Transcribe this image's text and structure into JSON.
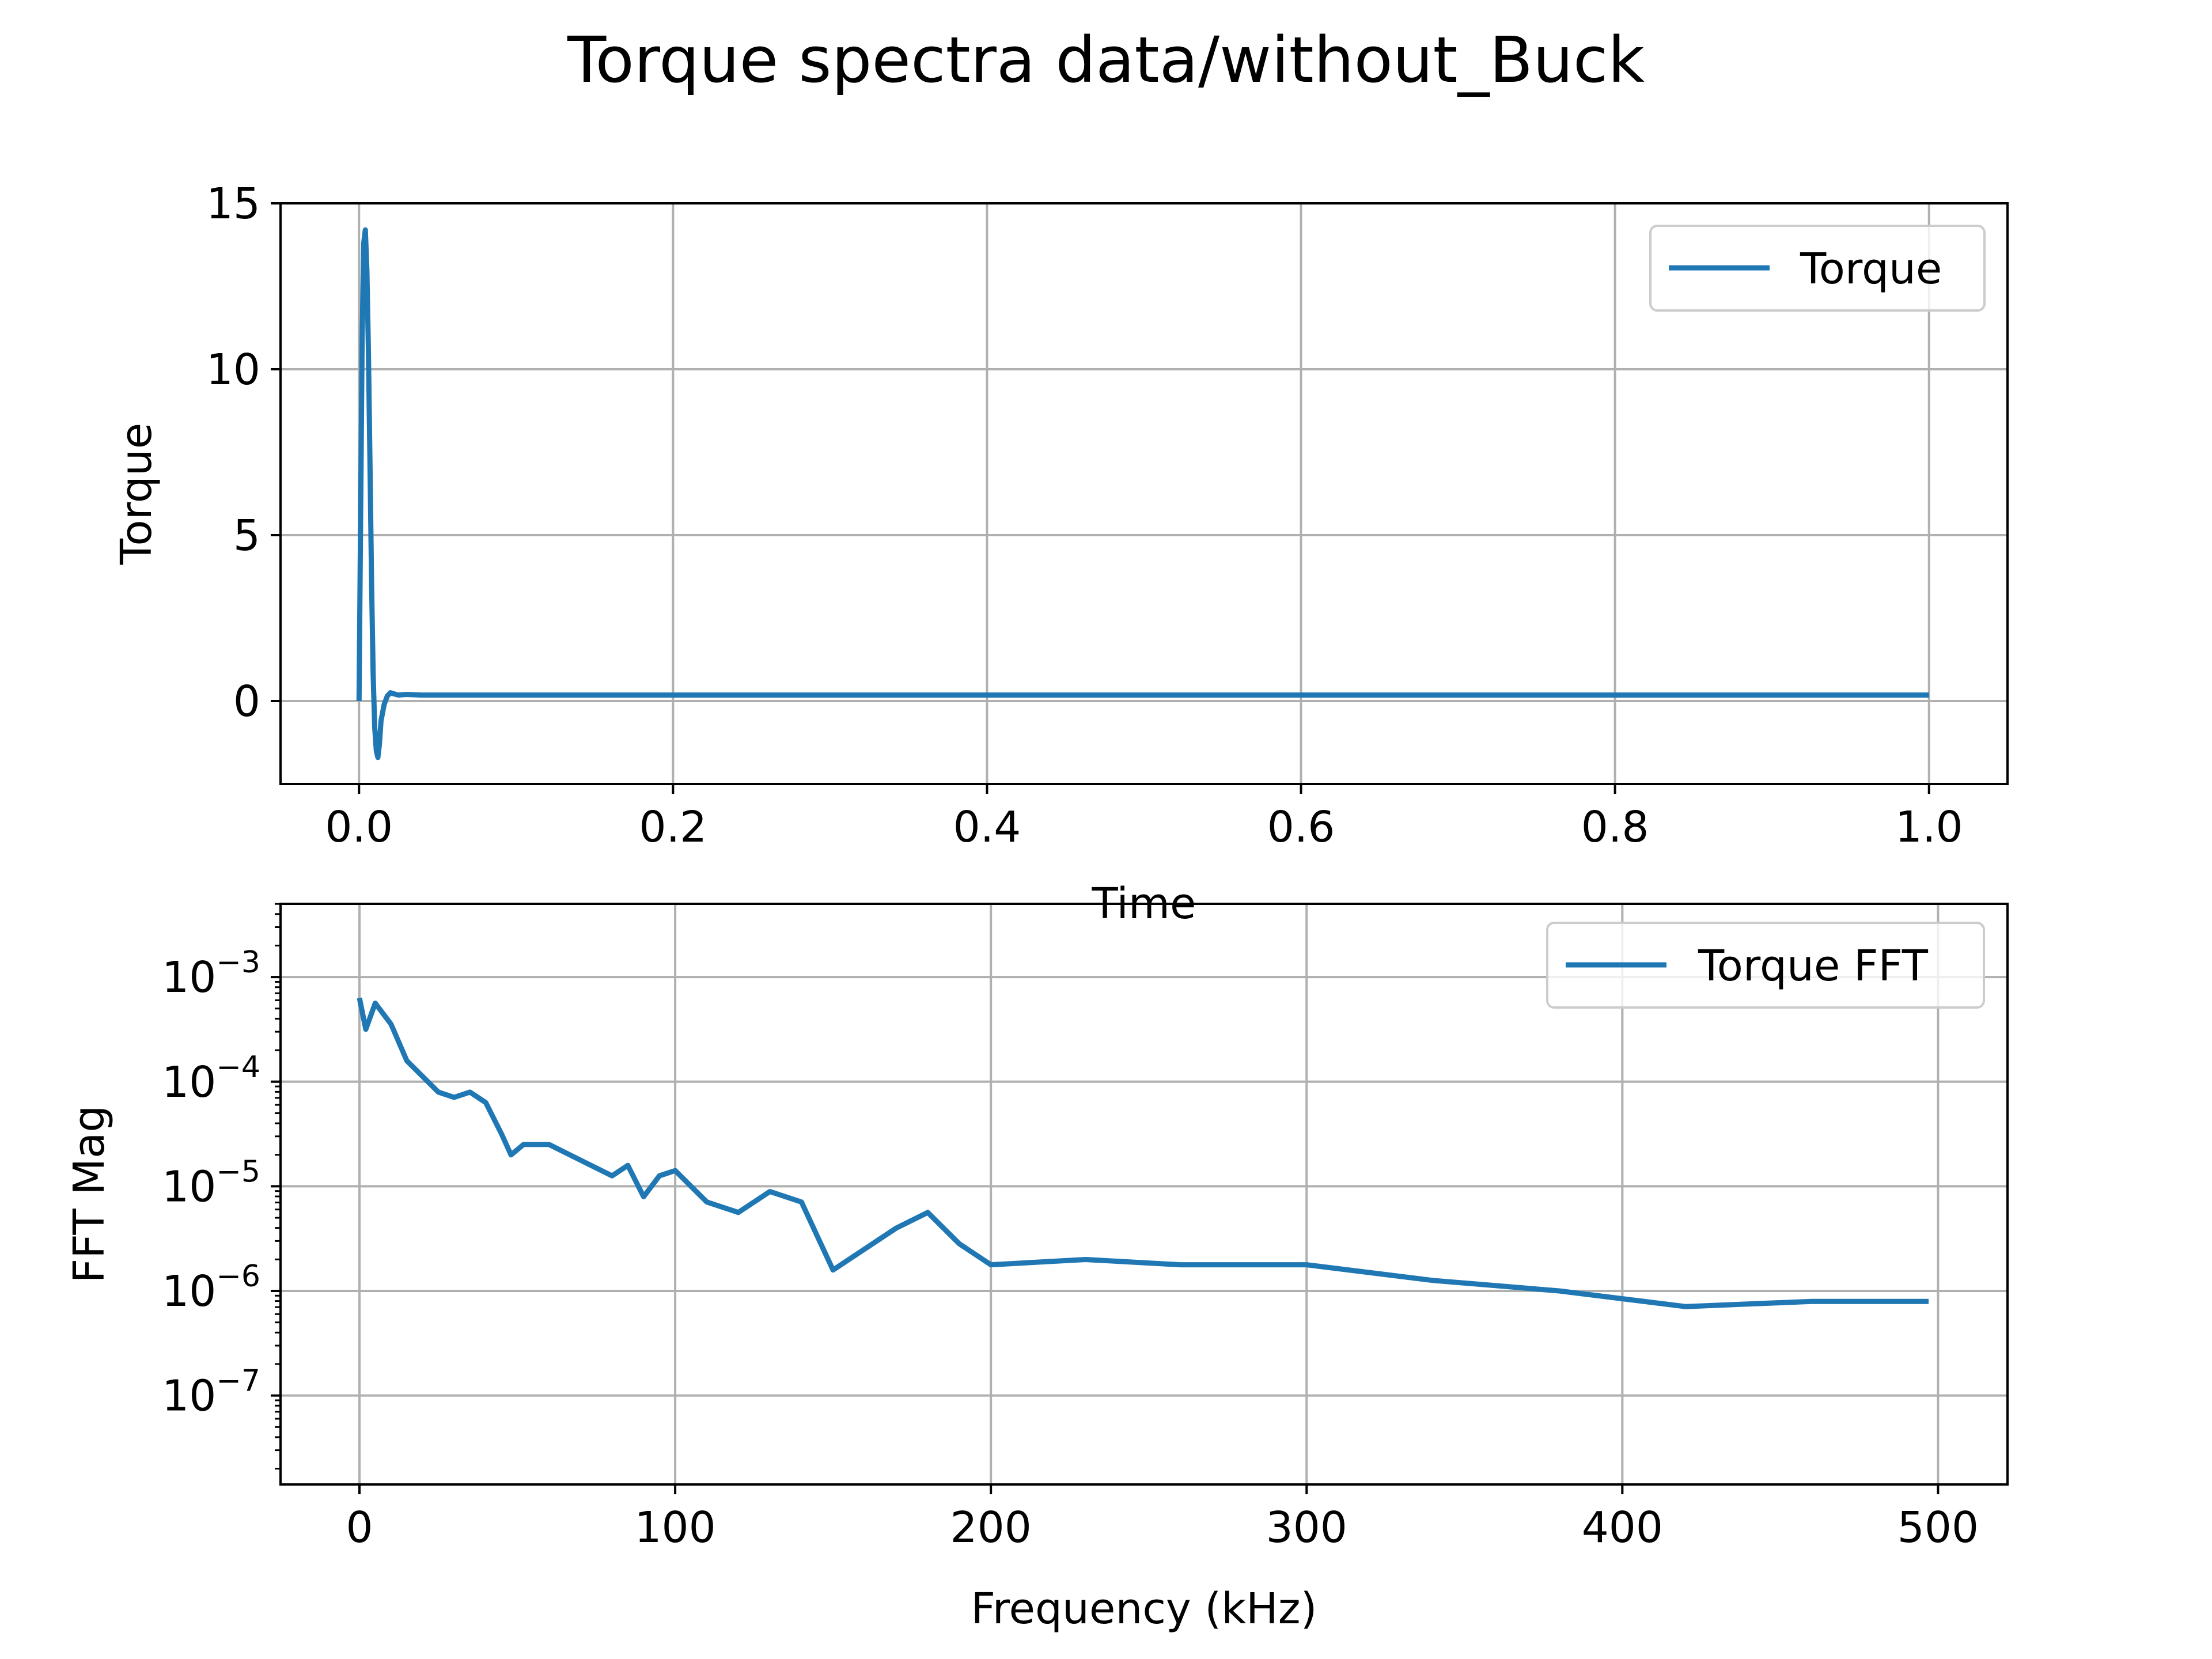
{
  "figure": {
    "suptitle": "Torque spectra data/without_Buck"
  },
  "chart_data": [
    {
      "type": "line",
      "title": "",
      "xlabel": "Time",
      "ylabel": "Torque",
      "xlim": [
        -0.05,
        1.05
      ],
      "ylim": [
        -2.5,
        15.0
      ],
      "xticks": [
        0.0,
        0.2,
        0.4,
        0.6,
        0.8,
        1.0
      ],
      "xtick_labels": [
        "0.0",
        "0.2",
        "0.4",
        "0.6",
        "0.8",
        "1.0"
      ],
      "yticks": [
        0,
        5,
        10,
        15
      ],
      "ytick_labels": [
        "0",
        "5",
        "10",
        "15"
      ],
      "grid": true,
      "legend": "upper right",
      "series": [
        {
          "name": "Torque",
          "color": "#1f77b4",
          "x": [
            0.0,
            0.001,
            0.002,
            0.003,
            0.004,
            0.005,
            0.006,
            0.007,
            0.008,
            0.009,
            0.01,
            0.011,
            0.012,
            0.013,
            0.014,
            0.016,
            0.018,
            0.02,
            0.022,
            0.025,
            0.03,
            0.04,
            0.05,
            0.1,
            0.2,
            0.3,
            0.4,
            0.5,
            0.6,
            0.7,
            0.8,
            0.9,
            1.0
          ],
          "y": [
            0.0,
            5.5,
            11.0,
            13.8,
            14.2,
            13.0,
            10.5,
            7.0,
            3.5,
            0.8,
            -0.8,
            -1.5,
            -1.7,
            -1.3,
            -0.6,
            -0.1,
            0.15,
            0.25,
            0.22,
            0.18,
            0.2,
            0.18,
            0.18,
            0.18,
            0.18,
            0.18,
            0.18,
            0.18,
            0.18,
            0.18,
            0.18,
            0.18,
            0.18
          ]
        }
      ]
    },
    {
      "type": "line",
      "title": "",
      "xlabel": "Frequency (kHz)",
      "ylabel": "FFT Mag",
      "yscale": "log",
      "xlim": [
        -25,
        522
      ],
      "ylim_log10": [
        -7.85,
        -2.3
      ],
      "xticks": [
        0,
        100,
        200,
        300,
        400,
        500
      ],
      "xtick_labels": [
        "0",
        "100",
        "200",
        "300",
        "400",
        "500"
      ],
      "yticks": [
        -3,
        -4,
        -5,
        -6,
        -7
      ],
      "ytick_base": "10",
      "ytick_exponents": [
        "−3",
        "−4",
        "−5",
        "−6",
        "−7"
      ],
      "grid": true,
      "legend": "upper right",
      "series": [
        {
          "name": "Torque FFT",
          "color": "#1f77b4",
          "x": [
            0,
            2,
            5,
            10,
            15,
            20,
            25,
            30,
            35,
            40,
            45,
            48,
            52,
            60,
            70,
            80,
            85,
            90,
            95,
            100,
            110,
            120,
            130,
            140,
            150,
            160,
            170,
            180,
            190,
            200,
            230,
            260,
            300,
            340,
            380,
            420,
            460,
            497
          ],
          "y_log10": [
            -3.2,
            -3.5,
            -3.25,
            -3.45,
            -3.8,
            -3.95,
            -4.1,
            -4.15,
            -4.1,
            -4.2,
            -4.5,
            -4.7,
            -4.6,
            -4.6,
            -4.75,
            -4.9,
            -4.8,
            -5.1,
            -4.9,
            -4.85,
            -5.15,
            -5.25,
            -5.05,
            -5.15,
            -5.8,
            -5.6,
            -5.4,
            -5.25,
            -5.55,
            -5.75,
            -5.7,
            -5.75,
            -5.75,
            -5.9,
            -6.0,
            -6.15,
            -6.1,
            -6.1
          ]
        }
      ]
    }
  ]
}
